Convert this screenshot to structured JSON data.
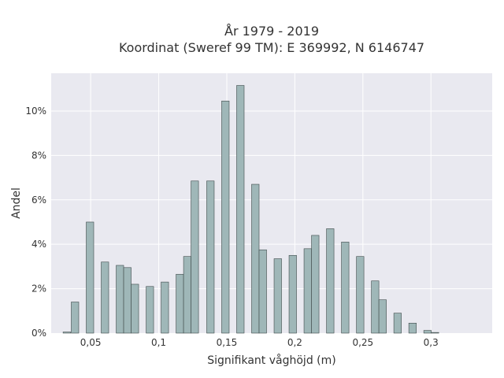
{
  "chart_data": {
    "type": "bar",
    "title_line1": "År 1979 - 2019",
    "title_line2": "Koordinat (Sweref 99 TM): E 369992, N 6146747",
    "xlabel": "Signifikant våghöjd (m)",
    "ylabel": "Andel",
    "xlim": [
      0.021,
      0.345
    ],
    "ylim": [
      0,
      11.7
    ],
    "x_ticks": [
      {
        "value": 0.05,
        "label": "0,05"
      },
      {
        "value": 0.1,
        "label": "0,1"
      },
      {
        "value": 0.15,
        "label": "0,15"
      },
      {
        "value": 0.2,
        "label": "0,2"
      },
      {
        "value": 0.25,
        "label": "0,25"
      },
      {
        "value": 0.3,
        "label": "0,3"
      }
    ],
    "y_ticks": [
      {
        "value": 0,
        "label": "0%"
      },
      {
        "value": 2,
        "label": "2%"
      },
      {
        "value": 4,
        "label": "4%"
      },
      {
        "value": 6,
        "label": "6%"
      },
      {
        "value": 8,
        "label": "8%"
      },
      {
        "value": 10,
        "label": "10%"
      }
    ],
    "bar_width": 0.0055,
    "bars": [
      {
        "x": 0.0325,
        "y": 0.05
      },
      {
        "x": 0.0385,
        "y": 1.4
      },
      {
        "x": 0.0495,
        "y": 5.0
      },
      {
        "x": 0.0605,
        "y": 3.2
      },
      {
        "x": 0.0715,
        "y": 3.05
      },
      {
        "x": 0.077,
        "y": 2.95
      },
      {
        "x": 0.0825,
        "y": 2.2
      },
      {
        "x": 0.0935,
        "y": 2.1
      },
      {
        "x": 0.1045,
        "y": 2.3
      },
      {
        "x": 0.1155,
        "y": 2.65
      },
      {
        "x": 0.121,
        "y": 3.45
      },
      {
        "x": 0.1265,
        "y": 6.85
      },
      {
        "x": 0.138,
        "y": 6.85
      },
      {
        "x": 0.149,
        "y": 10.45
      },
      {
        "x": 0.16,
        "y": 11.15
      },
      {
        "x": 0.171,
        "y": 6.7
      },
      {
        "x": 0.1765,
        "y": 3.75
      },
      {
        "x": 0.1875,
        "y": 3.35
      },
      {
        "x": 0.1985,
        "y": 3.5
      },
      {
        "x": 0.2095,
        "y": 3.8
      },
      {
        "x": 0.215,
        "y": 4.4
      },
      {
        "x": 0.226,
        "y": 4.7
      },
      {
        "x": 0.237,
        "y": 4.1
      },
      {
        "x": 0.248,
        "y": 3.45
      },
      {
        "x": 0.259,
        "y": 2.35
      },
      {
        "x": 0.2645,
        "y": 1.5
      },
      {
        "x": 0.2755,
        "y": 0.9
      },
      {
        "x": 0.2865,
        "y": 0.45
      },
      {
        "x": 0.2975,
        "y": 0.12
      },
      {
        "x": 0.303,
        "y": 0.03
      }
    ],
    "grid": true,
    "colors": {
      "background": "#e9e9f0",
      "bar_fill": "#9fb7b8",
      "bar_edge": "#3f4a4a"
    }
  }
}
